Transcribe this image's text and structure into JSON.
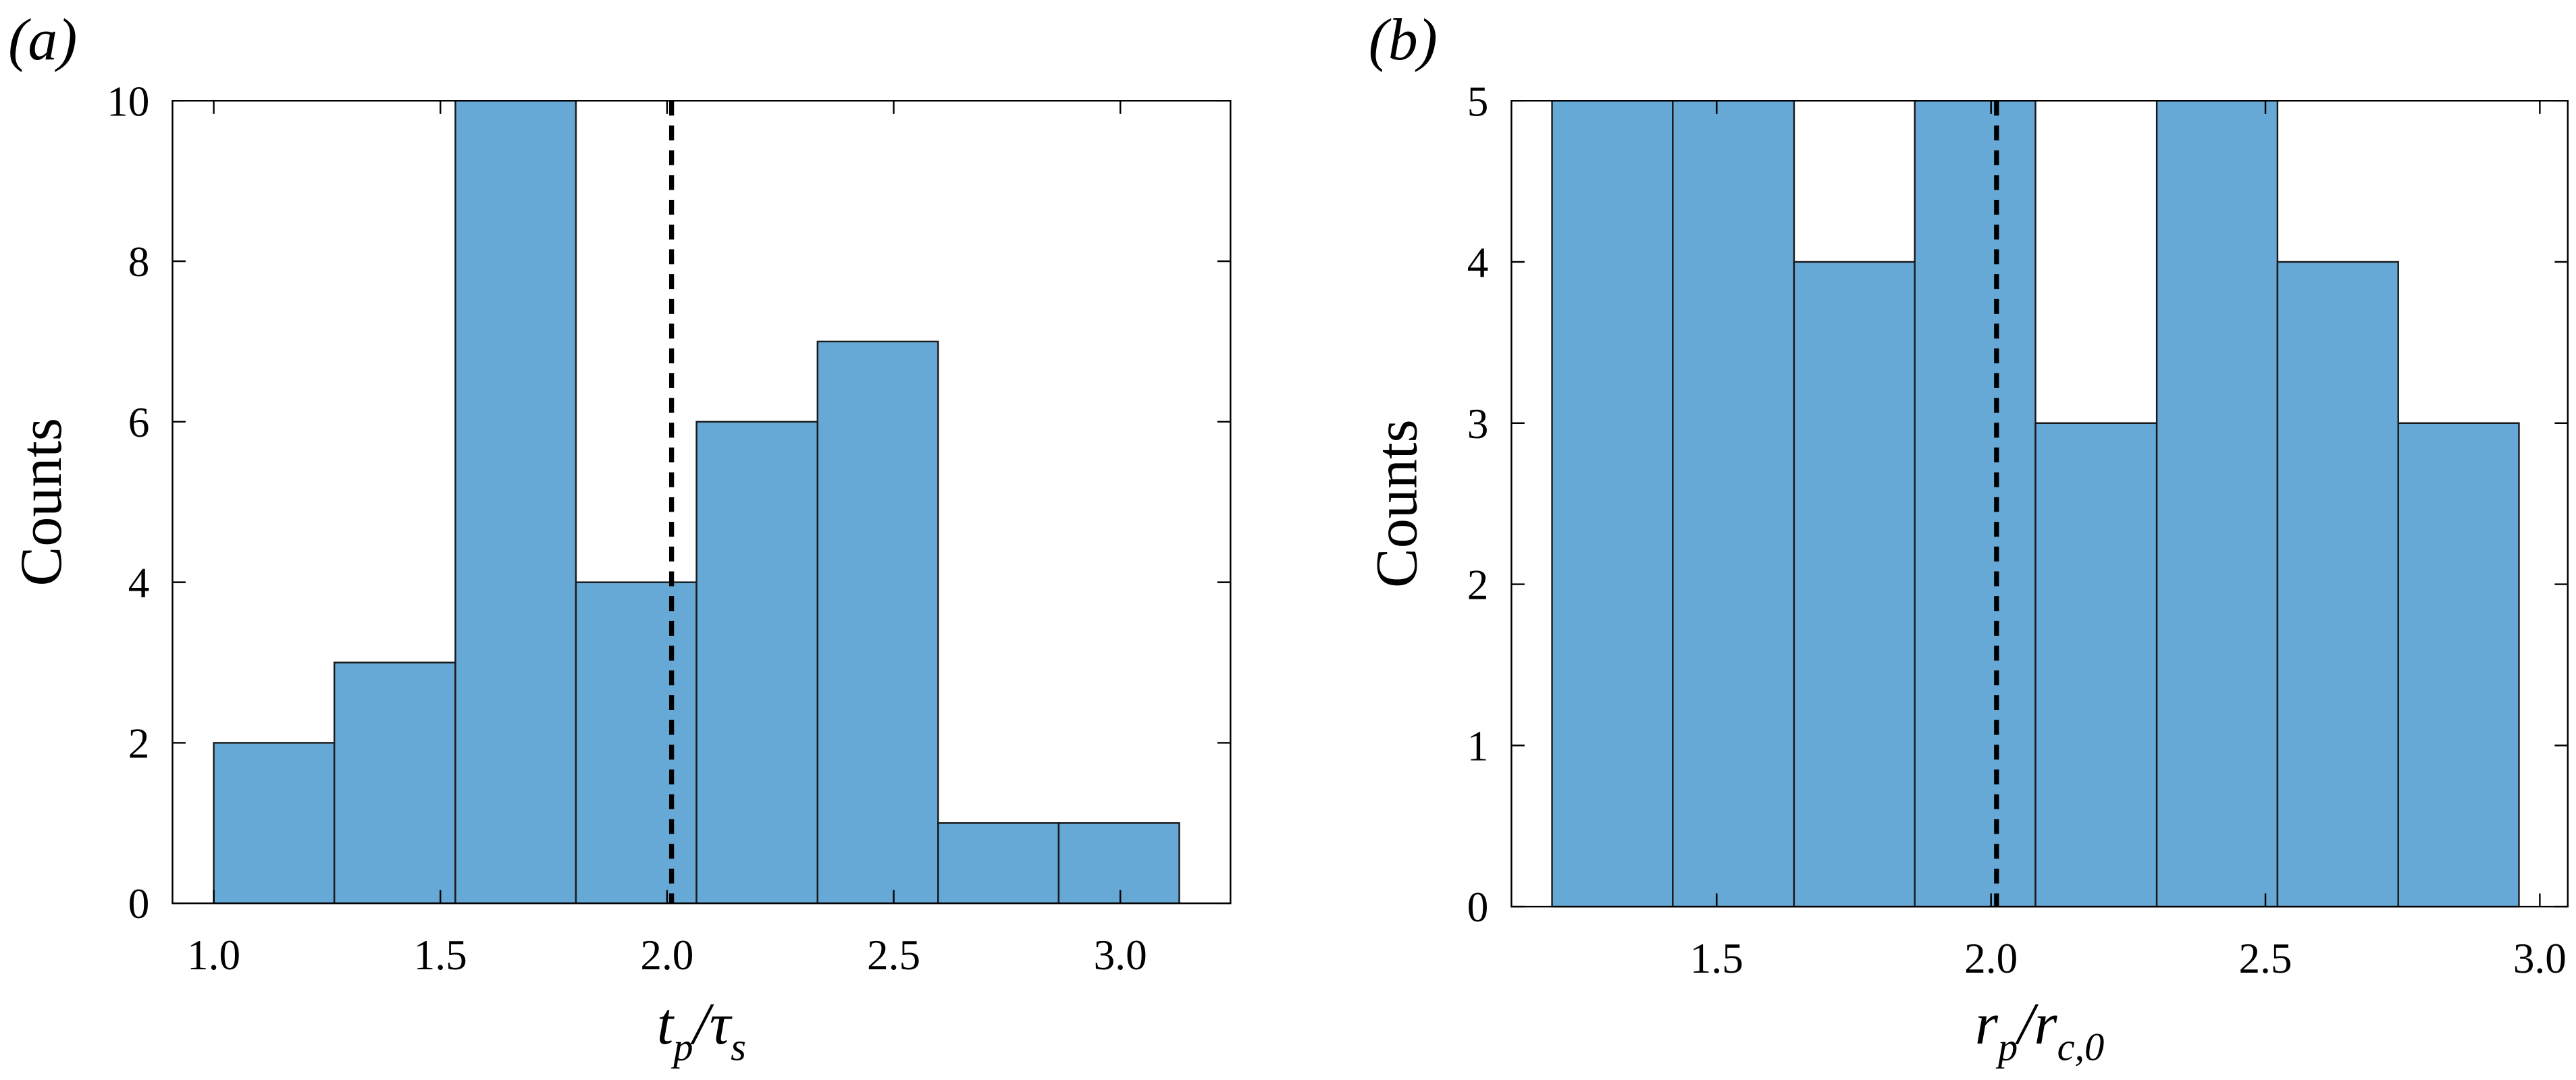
{
  "chart_data": [
    {
      "type": "histogram",
      "panel_label": "(a)",
      "ylabel": "Counts",
      "xlabel_parts": [
        "t",
        "p",
        "/τ",
        "s"
      ],
      "bins": [
        1.0,
        1.266,
        1.533,
        1.799,
        2.065,
        2.332,
        2.598,
        2.864,
        3.13
      ],
      "values": [
        2,
        3,
        10,
        4,
        6,
        7,
        1,
        1
      ],
      "color": "#67a9d6",
      "xlim": [
        0.909,
        3.243
      ],
      "ylim": [
        0,
        10
      ],
      "xticks": [
        {
          "value": 1,
          "label": "1.0"
        },
        1.5,
        {
          "value": 2,
          "label": "2.0"
        },
        2.5,
        {
          "value": 3,
          "label": "3.0"
        }
      ],
      "yticks": [
        0,
        2,
        4,
        6,
        8,
        10
      ],
      "vline": 2.01
    },
    {
      "type": "histogram",
      "panel_label": "(b)",
      "ylabel": "Counts",
      "xlabel_parts": [
        "r",
        "p",
        "/r",
        "c,0"
      ],
      "bins": [
        1.2,
        1.42,
        1.641,
        1.861,
        2.081,
        2.302,
        2.522,
        2.742,
        2.962
      ],
      "values": [
        5,
        5,
        4,
        5,
        3,
        5,
        4,
        3
      ],
      "color": "#67a9d6",
      "xlim": [
        1.126,
        3.051
      ],
      "ylim": [
        0,
        5
      ],
      "xticks": [
        1.5,
        {
          "value": 2,
          "label": "2.0"
        },
        2.5,
        {
          "value": 3,
          "label": "3.0"
        }
      ],
      "yticks": [
        0,
        1,
        2,
        3,
        4,
        5
      ],
      "vline": 2.01
    }
  ]
}
